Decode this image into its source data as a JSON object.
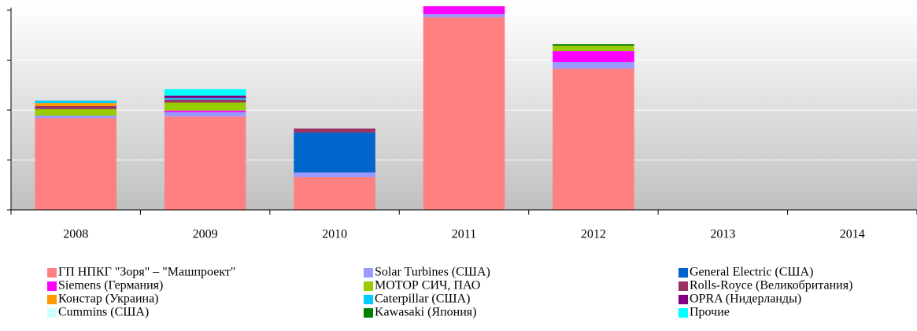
{
  "chart_data": {
    "type": "stacked_bar",
    "categories": [
      "2008",
      "2009",
      "2010",
      "2011",
      "2012",
      "2013",
      "2014"
    ],
    "series": [
      {
        "name": "ГП НПКГ \"Зоря\" – \"Машпроект\"",
        "color": "#ff8080",
        "values": [
          1.84,
          1.87,
          0.66,
          3.86,
          2.83,
          0,
          0
        ]
      },
      {
        "name": "Solar Turbines (США)",
        "color": "#9999ff",
        "values": [
          0.05,
          0.09,
          0.09,
          0.06,
          0.13,
          0,
          0
        ]
      },
      {
        "name": "General Electric (США)",
        "color": "#0066cc",
        "values": [
          0,
          0,
          0.8,
          0,
          0,
          0,
          0
        ]
      },
      {
        "name": "Siemens (Германия)",
        "color": "#ff00ff",
        "values": [
          0,
          0.03,
          0,
          0.16,
          0.22,
          0,
          0
        ]
      },
      {
        "name": "МОТОР СИЧ, ПАО",
        "color": "#99cc00",
        "values": [
          0.13,
          0.16,
          0,
          0,
          0.11,
          0,
          0
        ]
      },
      {
        "name": "Rolls-Royce (Великобритания)",
        "color": "#993366",
        "values": [
          0.06,
          0.06,
          0.08,
          0,
          0,
          0,
          0
        ]
      },
      {
        "name": "Констар (Украина)",
        "color": "#ff9900",
        "values": [
          0.06,
          0,
          0,
          0,
          0,
          0,
          0
        ]
      },
      {
        "name": "Caterpillar (США)",
        "color": "#00ccff",
        "values": [
          0.05,
          0.03,
          0,
          0,
          0,
          0,
          0
        ]
      },
      {
        "name": "OPRA (Нидерланды)",
        "color": "#800080",
        "values": [
          0,
          0.05,
          0,
          0,
          0,
          0,
          0
        ]
      },
      {
        "name": "Cummins (США)",
        "color": "#ccffff",
        "values": [
          0,
          0,
          0,
          0,
          0,
          0,
          0
        ]
      },
      {
        "name": "Kawasaki (Япония)",
        "color": "#008000",
        "values": [
          0,
          0,
          0,
          0,
          0.03,
          0,
          0
        ]
      },
      {
        "name": "Прочие",
        "color": "#00ffff",
        "values": [
          0,
          0.13,
          0,
          0,
          0,
          0,
          0
        ]
      }
    ],
    "ylim": [
      0,
      4.1
    ],
    "yticks": [
      0,
      1,
      2,
      3,
      4
    ],
    "grid": true
  }
}
